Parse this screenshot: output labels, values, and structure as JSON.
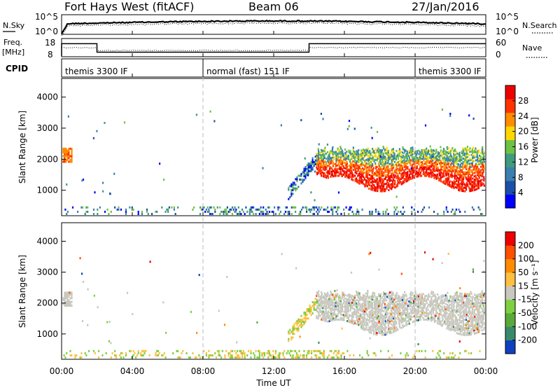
{
  "header": {
    "station": "Fort Hays West (fitACF)",
    "beam": "Beam 06",
    "date": "27/Jan/2016"
  },
  "chart_data": [
    {
      "type": "line",
      "panel": "noise",
      "left_label": "N.Sky",
      "right_label": "N.Search",
      "yticks_left": [
        "10^5",
        "10^0"
      ],
      "yticks_right": [
        "10^5",
        "10^0"
      ]
    },
    {
      "type": "line",
      "panel": "frequency-nave",
      "left_label_1": "Freq.",
      "left_label_2": "[MHz]",
      "right_label": "Nave",
      "yticks_left": [
        "18",
        "8"
      ],
      "yticks_right": [
        "60",
        "0"
      ],
      "freq_steps": [
        {
          "x": [
            0.0,
            2.0
          ],
          "y": 16
        },
        {
          "x": [
            2.0,
            14.0
          ],
          "y": 10.5
        },
        {
          "x": [
            14.0,
            24.0
          ],
          "y": 16
        }
      ]
    },
    {
      "type": "table",
      "panel": "cpid",
      "label": "CPID",
      "modes": [
        {
          "start": 0,
          "end": 8,
          "label": "themis 3300 IF"
        },
        {
          "start": 8,
          "end": 20,
          "label": "normal (fast) 151 IF"
        },
        {
          "start": 20,
          "end": 24,
          "label": "themis 3300 IF"
        }
      ]
    },
    {
      "type": "heatmap",
      "panel": "power",
      "ylabel": "Slant Range [km]",
      "yticks": [
        1000,
        2000,
        3000,
        4000
      ],
      "ylim": [
        180,
        4600
      ],
      "colorbar_label": "Power [dB]",
      "colorbar_ticks": [
        "28",
        "24",
        "20",
        "16",
        "12",
        "8",
        "4"
      ],
      "colors": [
        "#0000ff",
        "#1b4fa8",
        "#3a7fb0",
        "#3f9a7e",
        "#6cc146",
        "#ffd700",
        "#ff8c00",
        "#ff3300",
        "#ee0000"
      ]
    },
    {
      "type": "heatmap",
      "panel": "velocity",
      "ylabel": "Slant Range [km]",
      "yticks": [
        1000,
        2000,
        3000,
        4000
      ],
      "ylim": [
        180,
        4600
      ],
      "colorbar_label": "Velocity [m s⁻¹]",
      "colorbar_ticks": [
        "200",
        "100",
        "50",
        "15",
        "-15",
        "-50",
        "-100",
        "-200"
      ],
      "colors": [
        "#1040c0",
        "#3a8a6a",
        "#5aaa3a",
        "#7fd040",
        "#c8c8c0",
        "#ffc040",
        "#ff8c00",
        "#ff5000",
        "#ee0000"
      ]
    }
  ],
  "x_axis": {
    "xlabel": "Time UT",
    "ticks": [
      "00:00",
      "04:00",
      "08:00",
      "12:00",
      "16:00",
      "20:00",
      "00:00"
    ],
    "xlim": [
      0,
      24
    ]
  }
}
